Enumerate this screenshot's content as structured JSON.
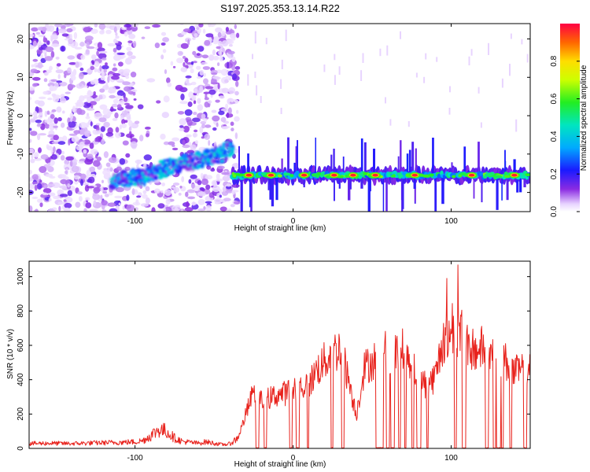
{
  "title": "S197.2025.353.13.14.R22",
  "chart_data": [
    {
      "type": "heatmap",
      "title": "S197.2025.353.13.14.R22",
      "xlabel": "Height of straight line (km)",
      "ylabel": "Frequency (Hz)",
      "xlim": [
        -167,
        150
      ],
      "ylim": [
        -25,
        24
      ],
      "x_ticks": [
        "-100",
        "0",
        "100"
      ],
      "x_tick_values": [
        -100,
        0,
        100
      ],
      "y_ticks": [
        "20",
        "10",
        "0",
        "-10",
        "-20"
      ],
      "y_tick_values": [
        20,
        10,
        0,
        -10,
        -20
      ],
      "colorbar": {
        "label": "Normalized spectral amplitude",
        "range": [
          0,
          1
        ],
        "ticks": [
          "0.0",
          "0.2",
          "0.4",
          "0.6",
          "0.8"
        ],
        "tick_values": [
          0,
          0.2,
          0.4,
          0.6,
          0.8
        ]
      },
      "features": [
        {
          "name": "noisy region",
          "x_range": [
            -167,
            -35
          ],
          "f_range": [
            -25,
            24
          ],
          "amplitude": 0.1
        },
        {
          "name": "rising signal",
          "x": [
            -115,
            -95,
            -80,
            -65,
            -55,
            -45,
            -38
          ],
          "f": [
            -17,
            -16,
            -13.5,
            -12,
            -11,
            -10,
            -8
          ],
          "amplitude": 0.35
        },
        {
          "name": "signal band",
          "x_range": [
            -38,
            150
          ],
          "f": -15.5,
          "amplitude": 0.7,
          "peaks_x": [
            -28,
            -14,
            7,
            26,
            38,
            52,
            77,
            113,
            140
          ]
        }
      ]
    },
    {
      "type": "line",
      "xlabel": "Height of straight line (km)",
      "ylabel": "SNR (10 * v/v)",
      "xlim": [
        -167,
        150
      ],
      "ylim": [
        0,
        1090
      ],
      "x_ticks": [
        "-100",
        "0",
        "100"
      ],
      "x_tick_values": [
        -100,
        0,
        100
      ],
      "y_ticks": [
        "0",
        "200",
        "400",
        "600",
        "800",
        "1000"
      ],
      "y_tick_values": [
        0,
        200,
        400,
        600,
        800,
        1000
      ],
      "series": [
        {
          "name": "SNR",
          "color": "#e8221c",
          "x": [
            -167,
            -155,
            -140,
            -125,
            -110,
            -100,
            -95,
            -90,
            -85,
            -80,
            -75,
            -70,
            -65,
            -60,
            -55,
            -50,
            -45,
            -40,
            -35,
            -30,
            -25,
            -22,
            -20,
            -15,
            -10,
            -5,
            0,
            5,
            10,
            15,
            20,
            25,
            30,
            35,
            40,
            45,
            50,
            55,
            60,
            65,
            70,
            75,
            80,
            85,
            90,
            95,
            100,
            105,
            110,
            115,
            120,
            125,
            130,
            135,
            140,
            145,
            150
          ],
          "values": [
            28,
            30,
            28,
            32,
            35,
            38,
            45,
            75,
            110,
            100,
            60,
            40,
            35,
            30,
            38,
            30,
            22,
            26,
            60,
            200,
            340,
            300,
            280,
            300,
            320,
            330,
            360,
            370,
            380,
            470,
            520,
            570,
            600,
            420,
            200,
            480,
            520,
            570,
            580,
            560,
            590,
            520,
            410,
            380,
            430,
            650,
            720,
            710,
            630,
            580,
            600,
            560,
            570,
            510,
            450,
            470,
            520
          ]
        }
      ]
    }
  ]
}
